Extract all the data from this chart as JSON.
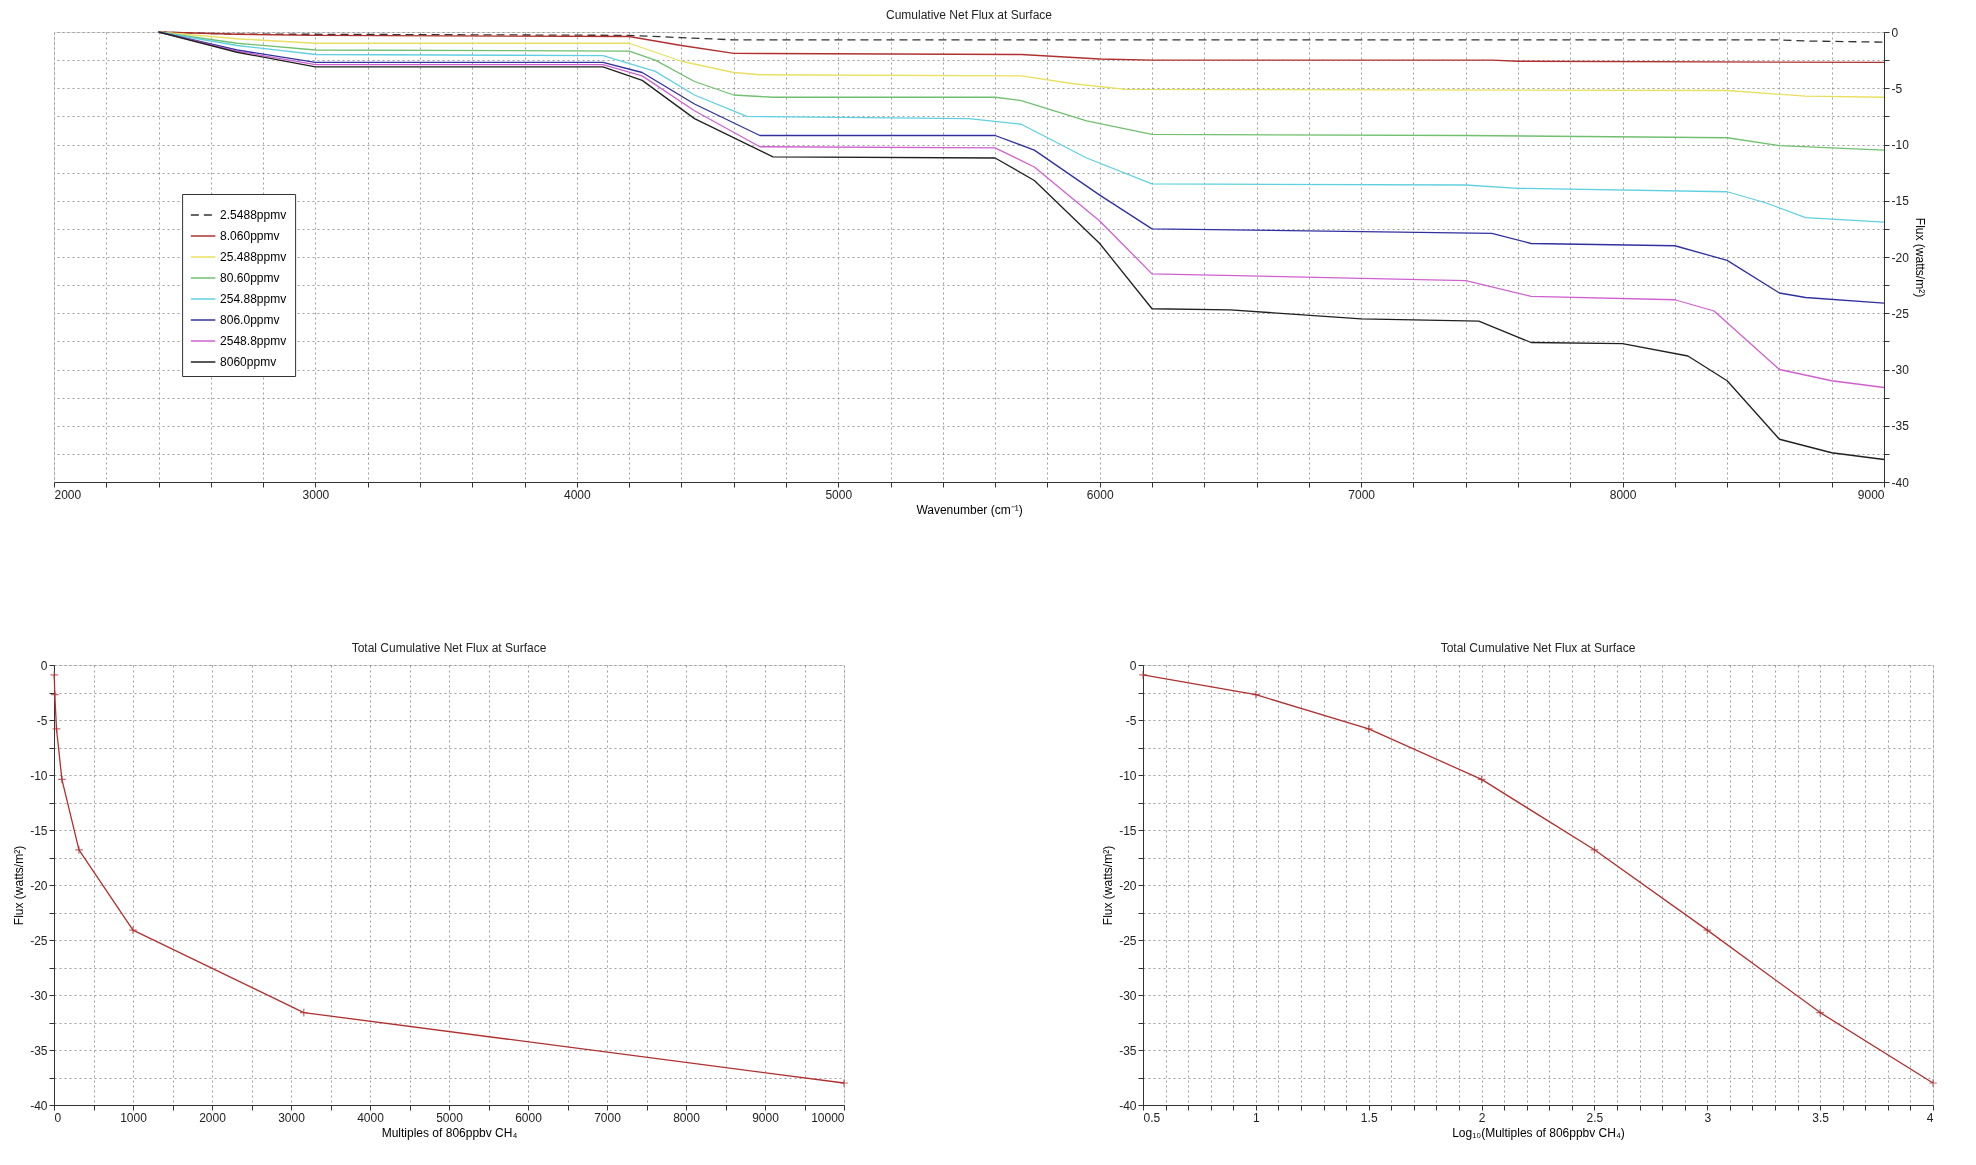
{
  "chart_data": [
    {
      "type": "line",
      "title": "Cumulative Net Flux at Surface",
      "xlabel": "Wavenumber (cm⁻¹)",
      "y2label": "Flux (watts/m²)",
      "xlim": [
        2000,
        9000
      ],
      "xticks": [
        2000,
        {
          "value": 2200,
          "label": null
        },
        {
          "value": 2400,
          "label": null
        },
        {
          "value": 2600,
          "label": null
        },
        {
          "value": 2800,
          "label": null
        },
        3000,
        {
          "value": 3200,
          "label": null
        },
        {
          "value": 3400,
          "label": null
        },
        {
          "value": 3600,
          "label": null
        },
        {
          "value": 3800,
          "label": null
        },
        4000,
        {
          "value": 4200,
          "label": null
        },
        {
          "value": 4400,
          "label": null
        },
        {
          "value": 4600,
          "label": null
        },
        {
          "value": 4800,
          "label": null
        },
        5000,
        {
          "value": 5200,
          "label": null
        },
        {
          "value": 5400,
          "label": null
        },
        {
          "value": 5600,
          "label": null
        },
        {
          "value": 5800,
          "label": null
        },
        6000,
        {
          "value": 6200,
          "label": null
        },
        {
          "value": 6400,
          "label": null
        },
        {
          "value": 6600,
          "label": null
        },
        {
          "value": 6800,
          "label": null
        },
        7000,
        {
          "value": 7200,
          "label": null
        },
        {
          "value": 7400,
          "label": null
        },
        {
          "value": 7600,
          "label": null
        },
        {
          "value": 7800,
          "label": null
        },
        8000,
        {
          "value": 8200,
          "label": null
        },
        {
          "value": 8400,
          "label": null
        },
        {
          "value": 8600,
          "label": null
        },
        {
          "value": 8800,
          "label": null
        },
        9000
      ],
      "y2lim": [
        -40,
        0
      ],
      "y2ticks": [
        0,
        {
          "value": -2.5,
          "label": null
        },
        -5,
        {
          "value": -7.5,
          "label": null
        },
        -10,
        {
          "value": -12.5,
          "label": null
        },
        -15,
        {
          "value": -17.5,
          "label": null
        },
        -20,
        {
          "value": -22.5,
          "label": null
        },
        -25,
        {
          "value": -27.5,
          "label": null
        },
        -30,
        {
          "value": -32.5,
          "label": null
        },
        -35,
        {
          "value": -37.5,
          "label": null
        },
        -40
      ],
      "grid": true,
      "legend": "left",
      "series": [
        {
          "name": "2.5488ppmv",
          "color": "#333333",
          "line_style": "dashed",
          "axis": "y2",
          "x": [
            2400,
            2700,
            3000,
            4200,
            4400,
            4600,
            8600,
            8700,
            9000
          ],
          "values": [
            0,
            -0.2,
            -0.2,
            -0.3,
            -0.5,
            -0.7,
            -0.7,
            -0.8,
            -0.9
          ]
        },
        {
          "name": "8.060ppmv",
          "color": "#b03030",
          "line_style": "solid",
          "axis": "y2",
          "x": [
            2400,
            2700,
            3000,
            4200,
            4400,
            4600,
            5700,
            6000,
            6200,
            7500,
            7600,
            9000
          ],
          "values": [
            0,
            -0.2,
            -0.3,
            -0.4,
            -1.2,
            -1.9,
            -2.0,
            -2.4,
            -2.5,
            -2.5,
            -2.6,
            -2.7
          ]
        },
        {
          "name": "25.488ppmv",
          "color": "#e8e060",
          "line_style": "solid",
          "axis": "y2",
          "x": [
            2400,
            2700,
            3000,
            4200,
            4400,
            4600,
            4700,
            5700,
            5900,
            6100,
            8400,
            8700,
            9000
          ],
          "values": [
            0,
            -0.6,
            -1.0,
            -1.0,
            -2.6,
            -3.6,
            -3.8,
            -3.9,
            -4.6,
            -5.1,
            -5.2,
            -5.7,
            -5.8
          ]
        },
        {
          "name": "80.60ppmv",
          "color": "#70c070",
          "line_style": "solid",
          "axis": "y2",
          "x": [
            2400,
            2700,
            3000,
            4200,
            4300,
            4450,
            4600,
            4750,
            5600,
            5700,
            5950,
            6200,
            7400,
            8400,
            8600,
            9000
          ],
          "values": [
            0,
            -1.0,
            -1.6,
            -1.7,
            -2.5,
            -4.4,
            -5.6,
            -5.8,
            -5.8,
            -6.1,
            -7.9,
            -9.1,
            -9.2,
            -9.4,
            -10.1,
            -10.5
          ]
        },
        {
          "name": "254.88ppmv",
          "color": "#60d0e0",
          "line_style": "solid",
          "axis": "y2",
          "x": [
            2400,
            2700,
            3000,
            4100,
            4300,
            4450,
            4650,
            5500,
            5700,
            5950,
            6200,
            7400,
            7600,
            8400,
            8550,
            8700,
            9000
          ],
          "values": [
            0,
            -1.2,
            -2.0,
            -2.1,
            -3.5,
            -5.6,
            -7.5,
            -7.7,
            -8.2,
            -11.2,
            -13.5,
            -13.6,
            -13.9,
            -14.2,
            -15.2,
            -16.5,
            -16.9
          ]
        },
        {
          "name": "806.0ppmv",
          "color": "#3030a0",
          "line_style": "solid",
          "axis": "y2",
          "x": [
            2400,
            2700,
            3000,
            4100,
            4250,
            4450,
            4700,
            5600,
            5750,
            6000,
            6200,
            7500,
            7650,
            8200,
            8400,
            8600,
            8700,
            9000
          ],
          "values": [
            0,
            -1.6,
            -2.7,
            -2.7,
            -3.6,
            -6.4,
            -9.2,
            -9.2,
            -10.5,
            -14.5,
            -17.5,
            -17.9,
            -18.8,
            -19.0,
            -20.3,
            -23.2,
            -23.6,
            -24.1
          ]
        },
        {
          "name": "2548.8ppmv",
          "color": "#d060d0",
          "line_style": "solid",
          "axis": "y2",
          "x": [
            2400,
            2700,
            3000,
            4100,
            4250,
            4450,
            4700,
            5600,
            5750,
            6000,
            6200,
            7400,
            7650,
            8200,
            8350,
            8600,
            8800,
            9000
          ],
          "values": [
            0,
            -1.7,
            -2.9,
            -2.9,
            -3.9,
            -7.0,
            -10.2,
            -10.3,
            -12.0,
            -16.8,
            -21.5,
            -22.1,
            -23.5,
            -23.8,
            -24.8,
            -30.0,
            -31.0,
            -31.6
          ]
        },
        {
          "name": "8060ppmv",
          "color": "#202020",
          "line_style": "solid",
          "axis": "y2",
          "x": [
            2400,
            2700,
            3000,
            4100,
            4250,
            4450,
            4750,
            5600,
            5750,
            6000,
            6200,
            6500,
            7000,
            7450,
            7650,
            8000,
            8250,
            8400,
            8600,
            8800,
            9000
          ],
          "values": [
            0,
            -1.8,
            -3.1,
            -3.1,
            -4.3,
            -7.7,
            -11.1,
            -11.2,
            -13.2,
            -18.8,
            -24.6,
            -24.7,
            -25.5,
            -25.7,
            -27.6,
            -27.7,
            -28.8,
            -31.0,
            -36.2,
            -37.4,
            -38.0
          ]
        }
      ]
    },
    {
      "type": "line",
      "title": "Total Cumulative Net Flux at Surface",
      "xlabel": "Multiples of 806ppbv CH₄",
      "ylabel": "Flux (watts/m²)",
      "xlim": [
        0,
        10000
      ],
      "xticks": [
        0,
        {
          "value": 500,
          "label": null
        },
        1000,
        {
          "value": 1500,
          "label": null
        },
        2000,
        {
          "value": 2500,
          "label": null
        },
        3000,
        {
          "value": 3500,
          "label": null
        },
        4000,
        {
          "value": 4500,
          "label": null
        },
        5000,
        {
          "value": 5500,
          "label": null
        },
        6000,
        {
          "value": 6500,
          "label": null
        },
        7000,
        {
          "value": 7500,
          "label": null
        },
        8000,
        {
          "value": 8500,
          "label": null
        },
        9000,
        {
          "value": 9500,
          "label": null
        },
        10000
      ],
      "ylim": [
        -40,
        0
      ],
      "yticks": [
        0,
        {
          "value": -2.5,
          "label": null
        },
        -5,
        {
          "value": -7.5,
          "label": null
        },
        -10,
        {
          "value": -12.5,
          "label": null
        },
        -15,
        {
          "value": -17.5,
          "label": null
        },
        -20,
        {
          "value": -22.5,
          "label": null
        },
        -25,
        {
          "value": -27.5,
          "label": null
        },
        -30,
        {
          "value": -32.5,
          "label": null
        },
        -35,
        {
          "value": -37.5,
          "label": null
        },
        -40
      ],
      "grid": true,
      "marker": "cross",
      "series": [
        {
          "color": "#b03030",
          "x": [
            3.16,
            10,
            31.6,
            100,
            316,
            1000,
            3162,
            10000
          ],
          "values": [
            -0.9,
            -2.7,
            -5.8,
            -10.4,
            -16.8,
            -24.1,
            -31.6,
            -38.0
          ]
        }
      ]
    },
    {
      "type": "line",
      "title": "Total Cumulative Net Flux at Surface",
      "xlabel": "Log₁₀(Multiples of 806ppbv CH₄)",
      "ylabel": "Flux (watts/m²)",
      "xlim": [
        0.5,
        4
      ],
      "xticks": [
        0.5,
        {
          "value": 0.6,
          "label": null
        },
        {
          "value": 0.7,
          "label": null
        },
        {
          "value": 0.8,
          "label": null
        },
        {
          "value": 0.9,
          "label": null
        },
        1,
        {
          "value": 1.1,
          "label": null
        },
        {
          "value": 1.2,
          "label": null
        },
        {
          "value": 1.3,
          "label": null
        },
        {
          "value": 1.4,
          "label": null
        },
        1.5,
        {
          "value": 1.6,
          "label": null
        },
        {
          "value": 1.7,
          "label": null
        },
        {
          "value": 1.8,
          "label": null
        },
        {
          "value": 1.9,
          "label": null
        },
        2,
        {
          "value": 2.1,
          "label": null
        },
        {
          "value": 2.2,
          "label": null
        },
        {
          "value": 2.3,
          "label": null
        },
        {
          "value": 2.4,
          "label": null
        },
        2.5,
        {
          "value": 2.6,
          "label": null
        },
        {
          "value": 2.7,
          "label": null
        },
        {
          "value": 2.8,
          "label": null
        },
        {
          "value": 2.9,
          "label": null
        },
        3,
        {
          "value": 3.1,
          "label": null
        },
        {
          "value": 3.2,
          "label": null
        },
        {
          "value": 3.3,
          "label": null
        },
        {
          "value": 3.4,
          "label": null
        },
        3.5,
        {
          "value": 3.6,
          "label": null
        },
        {
          "value": 3.7,
          "label": null
        },
        {
          "value": 3.8,
          "label": null
        },
        {
          "value": 3.9,
          "label": null
        },
        4
      ],
      "ylim": [
        -40,
        0
      ],
      "yticks": [
        0,
        {
          "value": -2.5,
          "label": null
        },
        -5,
        {
          "value": -7.5,
          "label": null
        },
        -10,
        {
          "value": -12.5,
          "label": null
        },
        -15,
        {
          "value": -17.5,
          "label": null
        },
        -20,
        {
          "value": -22.5,
          "label": null
        },
        -25,
        {
          "value": -27.5,
          "label": null
        },
        -30,
        {
          "value": -32.5,
          "label": null
        },
        -35,
        {
          "value": -37.5,
          "label": null
        },
        -40
      ],
      "grid": true,
      "marker": "cross",
      "series": [
        {
          "color": "#b03030",
          "x": [
            0.5,
            1,
            1.5,
            2,
            2.5,
            3,
            3.5,
            4
          ],
          "values": [
            -0.9,
            -2.7,
            -5.8,
            -10.4,
            -16.8,
            -24.1,
            -31.6,
            -38.0
          ]
        }
      ]
    }
  ]
}
